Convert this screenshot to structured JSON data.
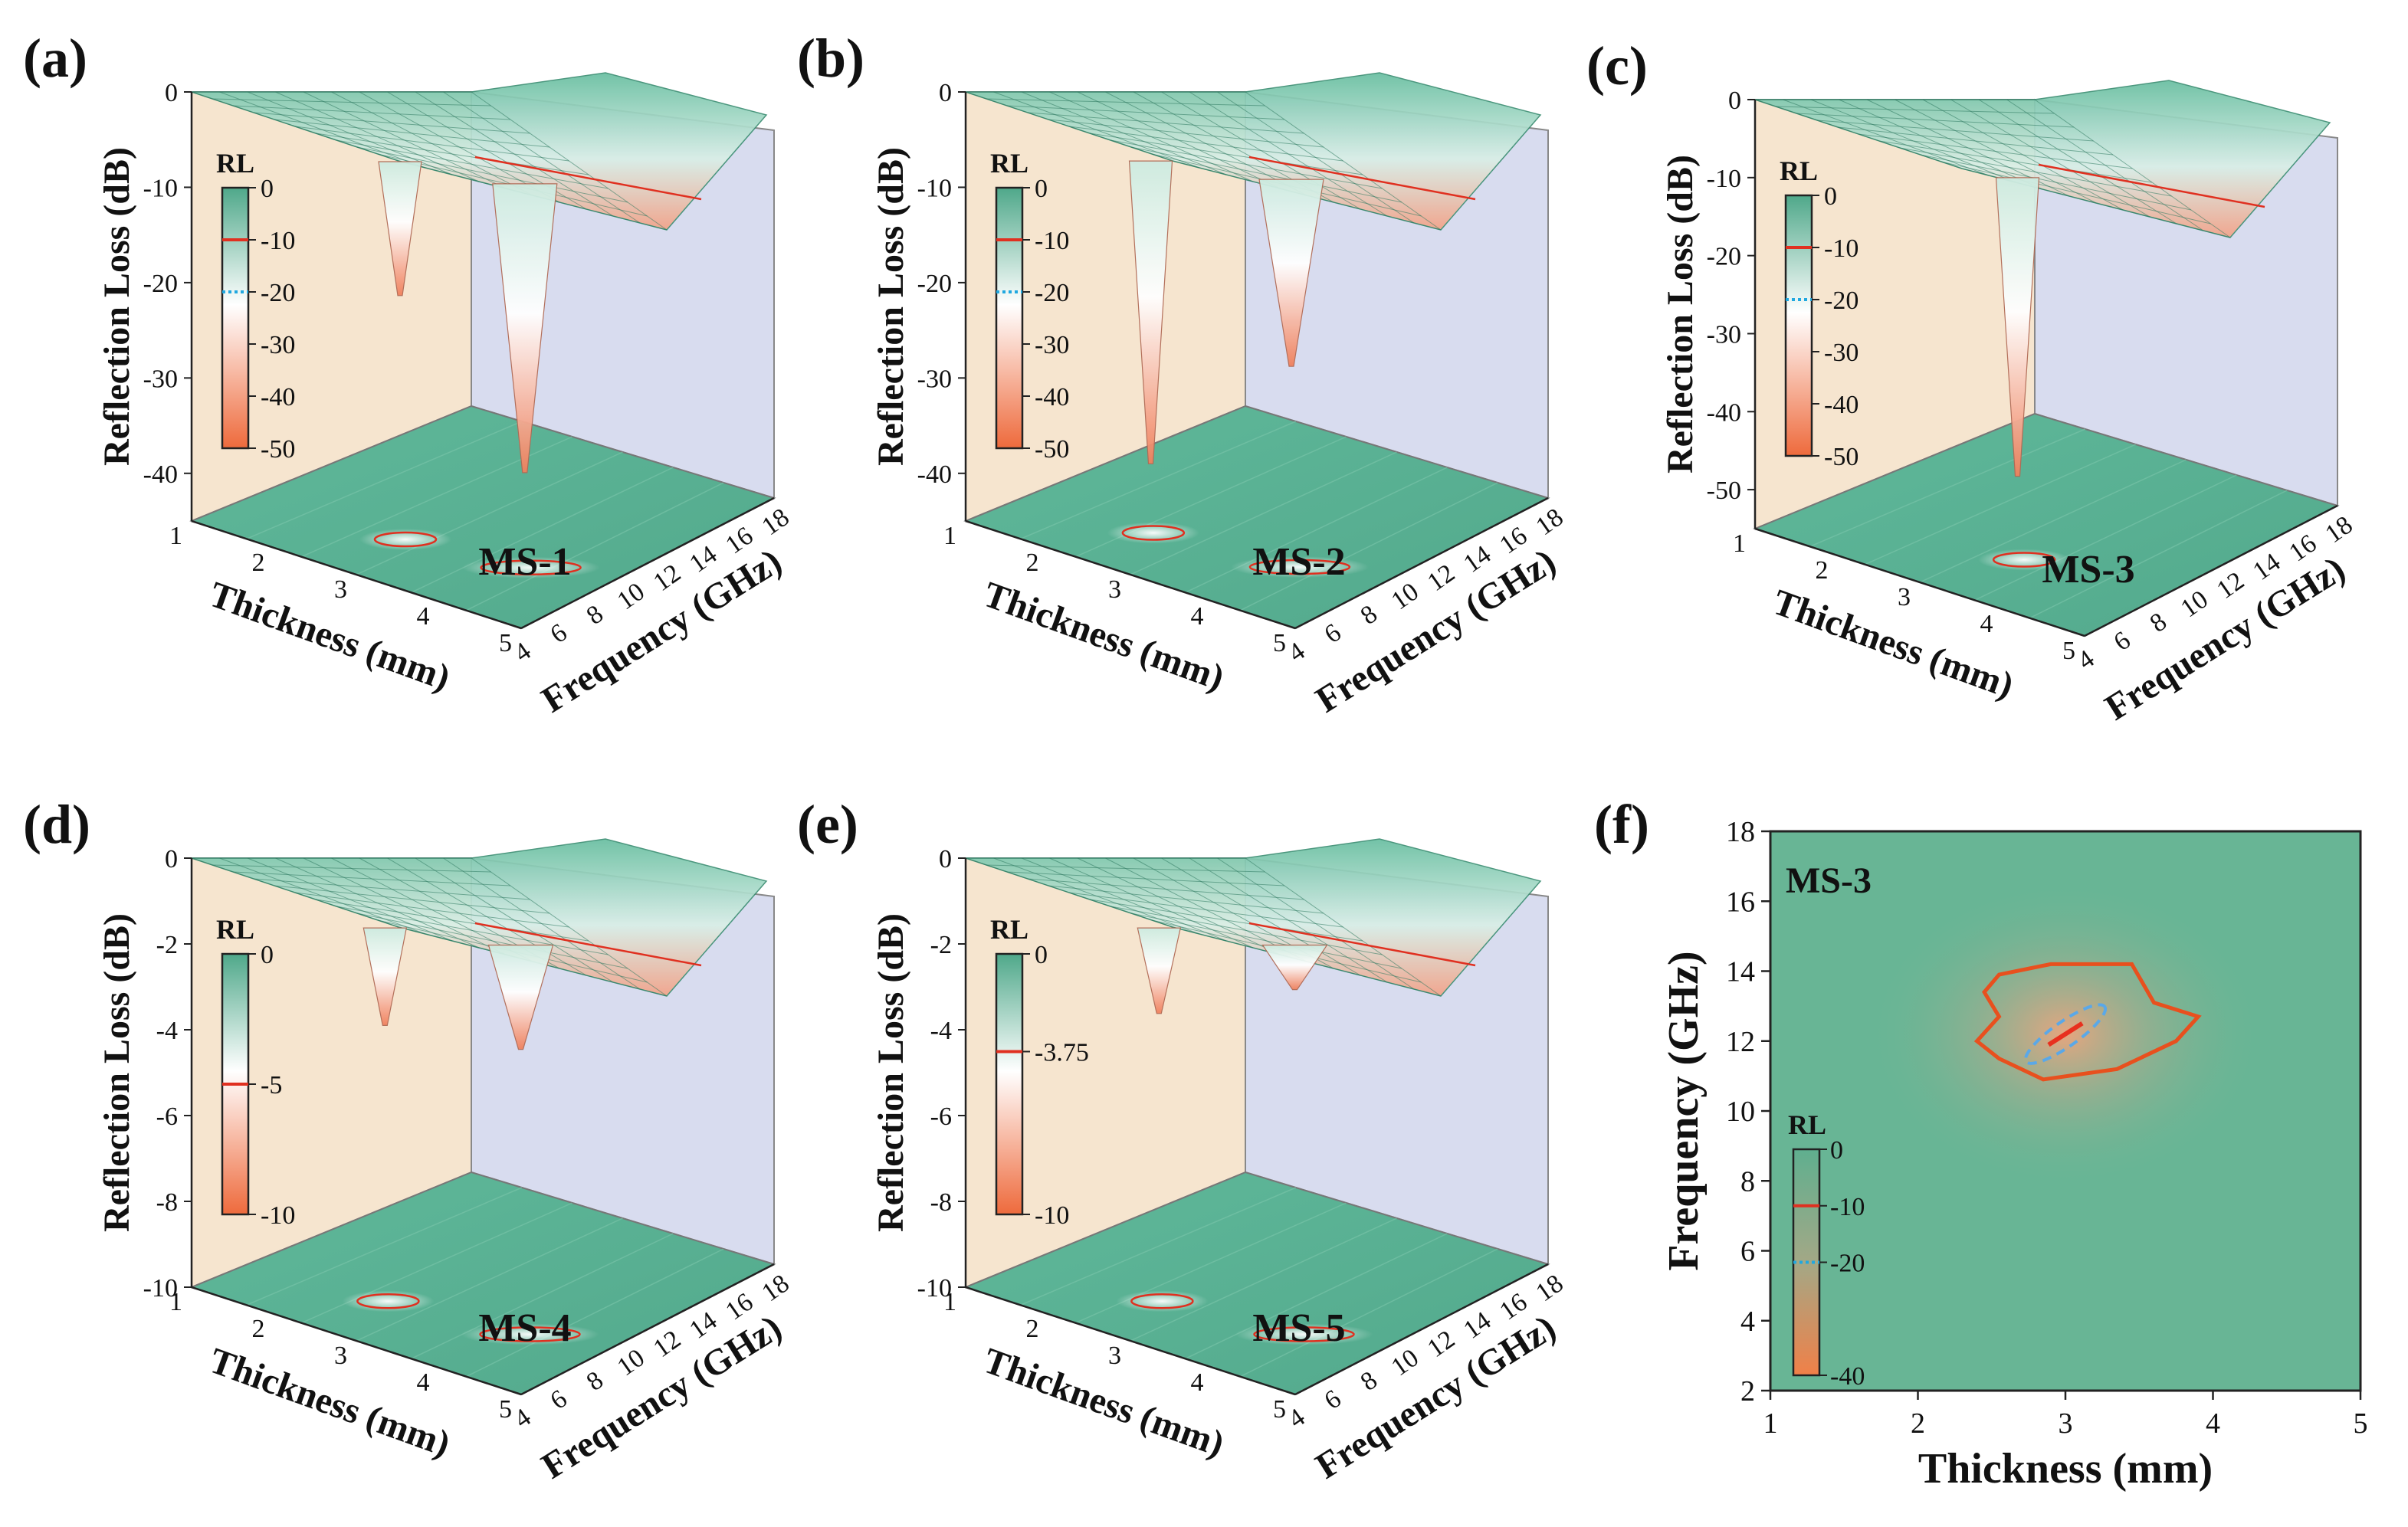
{
  "figure": {
    "panels": [
      {
        "letter": "(a)",
        "sample": "MS-1"
      },
      {
        "letter": "(b)",
        "sample": "MS-2"
      },
      {
        "letter": "(c)",
        "sample": "MS-3"
      },
      {
        "letter": "(d)",
        "sample": "MS-4"
      },
      {
        "letter": "(e)",
        "sample": "MS-5"
      },
      {
        "letter": "(f)",
        "sample": "MS-3"
      }
    ]
  },
  "chart_data": [
    {
      "type": "surface3d",
      "panel": "(a)",
      "sample": "MS-1",
      "xlabel": "Thickness (mm)",
      "ylabel": "Frequency (GHz)",
      "zlabel": "Reflection Loss (dB)",
      "x_ticks": [
        "1",
        "2",
        "3",
        "4",
        "5"
      ],
      "y_ticks": [
        "4",
        "6",
        "8",
        "10",
        "12",
        "14",
        "16",
        "18"
      ],
      "z_ticks": [
        "0",
        "-10",
        "-20",
        "-30",
        "-40"
      ],
      "zlim": [
        -45,
        0
      ],
      "colorbar": {
        "title": "RL",
        "ticks": [
          "0",
          "-10",
          "-20",
          "-30",
          "-40",
          "-50"
        ],
        "range": [
          -50,
          0
        ],
        "contours": [
          {
            "value": -10,
            "color": "#e03020",
            "style": "solid"
          },
          {
            "value": -20,
            "color": "#20a8e0",
            "style": "dotted"
          }
        ]
      },
      "peaks": [
        {
          "thickness": 2.6,
          "frequency": 10.0,
          "rl": -23
        },
        {
          "thickness": 3.3,
          "frequency": 17.0,
          "rl": -43
        }
      ]
    },
    {
      "type": "surface3d",
      "panel": "(b)",
      "sample": "MS-2",
      "xlabel": "Thickness (mm)",
      "ylabel": "Frequency (GHz)",
      "zlabel": "Reflection Loss (dB)",
      "x_ticks": [
        "1",
        "2",
        "3",
        "4",
        "5"
      ],
      "y_ticks": [
        "4",
        "6",
        "8",
        "10",
        "12",
        "14",
        "16",
        "18"
      ],
      "z_ticks": [
        "0",
        "-10",
        "-20",
        "-30",
        "-40"
      ],
      "zlim": [
        -45,
        0
      ],
      "colorbar": {
        "title": "RL",
        "ticks": [
          "0",
          "-10",
          "-20",
          "-30",
          "-40",
          "-50"
        ],
        "range": [
          -50,
          0
        ],
        "contours": [
          {
            "value": -10,
            "color": "#e03020",
            "style": "solid"
          },
          {
            "value": -20,
            "color": "#20a8e0",
            "style": "dotted"
          }
        ]
      },
      "peaks": [
        {
          "thickness": 2.2,
          "frequency": 11.0,
          "rl": -42
        },
        {
          "thickness": 3.5,
          "frequency": 14.5,
          "rl": -31
        }
      ]
    },
    {
      "type": "surface3d",
      "panel": "(c)",
      "sample": "MS-3",
      "xlabel": "Thickness (mm)",
      "ylabel": "Frequency (GHz)",
      "zlabel": "Reflection Loss (dB)",
      "x_ticks": [
        "1",
        "2",
        "3",
        "4",
        "5"
      ],
      "y_ticks": [
        "4",
        "6",
        "8",
        "10",
        "12",
        "14",
        "16",
        "18"
      ],
      "z_ticks": [
        "0",
        "-10",
        "-20",
        "-30",
        "-40",
        "-50"
      ],
      "zlim": [
        -55,
        0
      ],
      "colorbar": {
        "title": "RL",
        "ticks": [
          "0",
          "-10",
          "-20",
          "-30",
          "-40",
          "-50"
        ],
        "range": [
          -50,
          0
        ],
        "contours": [
          {
            "value": -10,
            "color": "#e03020",
            "style": "solid"
          },
          {
            "value": -20,
            "color": "#20a8e0",
            "style": "dotted"
          }
        ]
      },
      "peaks": [
        {
          "thickness": 3.0,
          "frequency": 12.2,
          "rl": -52
        }
      ]
    },
    {
      "type": "surface3d",
      "panel": "(d)",
      "sample": "MS-4",
      "xlabel": "Thickness (mm)",
      "ylabel": "Frequency (GHz)",
      "zlabel": "Reflection Loss (dB)",
      "x_ticks": [
        "1",
        "2",
        "3",
        "4",
        "5"
      ],
      "y_ticks": [
        "4",
        "6",
        "8",
        "10",
        "12",
        "14",
        "16",
        "18"
      ],
      "z_ticks": [
        "0",
        "-2",
        "-4",
        "-6",
        "-8",
        "-10"
      ],
      "zlim": [
        -10,
        0
      ],
      "colorbar": {
        "title": "RL",
        "ticks": [
          "0",
          "-5",
          "-10"
        ],
        "range": [
          -10,
          0
        ],
        "contours": [
          {
            "value": -5,
            "color": "#e03020",
            "style": "solid"
          }
        ]
      },
      "peaks": [
        {
          "thickness": 2.3,
          "frequency": 11.0,
          "rl": -4.2
        },
        {
          "thickness": 3.6,
          "frequency": 14.0,
          "rl": -4.8
        }
      ]
    },
    {
      "type": "surface3d",
      "panel": "(e)",
      "sample": "MS-5",
      "xlabel": "Thickness (mm)",
      "ylabel": "Frequency (GHz)",
      "zlabel": "Reflection Loss (dB)",
      "x_ticks": [
        "1",
        "2",
        "3",
        "4",
        "5"
      ],
      "y_ticks": [
        "4",
        "6",
        "8",
        "10",
        "12",
        "14",
        "16",
        "18"
      ],
      "z_ticks": [
        "0",
        "-2",
        "-4",
        "-6",
        "-8",
        "-10"
      ],
      "zlim": [
        -10,
        0
      ],
      "colorbar": {
        "title": "RL",
        "ticks": [
          "0",
          "-3.75",
          "-10"
        ],
        "range": [
          -10,
          0
        ],
        "contours": [
          {
            "value": -3.75,
            "color": "#e03020",
            "style": "solid"
          }
        ]
      },
      "peaks": [
        {
          "thickness": 2.3,
          "frequency": 11.0,
          "rl": -3.9
        },
        {
          "thickness": 3.6,
          "frequency": 14.0,
          "rl": -3.3
        }
      ]
    },
    {
      "type": "heatmap",
      "panel": "(f)",
      "sample": "MS-3",
      "xlabel": "Thickness (mm)",
      "ylabel": "Frequency (GHz)",
      "x_ticks": [
        "1",
        "2",
        "3",
        "4",
        "5"
      ],
      "xlim": [
        1,
        5
      ],
      "y_ticks": [
        "2",
        "4",
        "6",
        "8",
        "10",
        "12",
        "14",
        "16",
        "18"
      ],
      "ylim": [
        2,
        18
      ],
      "colorbar": {
        "title": "RL",
        "ticks": [
          "0",
          "-10",
          "-20",
          "-40"
        ],
        "range": [
          -40,
          0
        ],
        "contours": [
          {
            "value": -10,
            "color": "#e03020",
            "style": "solid"
          },
          {
            "value": -20,
            "color": "#20a8e0",
            "style": "dashed"
          }
        ]
      },
      "minimum": {
        "thickness": 3.0,
        "frequency": 12.2,
        "rl": -52
      },
      "contour_m10": [
        [
          2.55,
          13.9
        ],
        [
          2.9,
          14.2
        ],
        [
          3.45,
          14.2
        ],
        [
          3.6,
          13.1
        ],
        [
          3.9,
          12.7
        ],
        [
          3.75,
          12.0
        ],
        [
          3.35,
          11.2
        ],
        [
          2.85,
          10.9
        ],
        [
          2.55,
          11.5
        ],
        [
          2.4,
          12.0
        ],
        [
          2.55,
          12.7
        ],
        [
          2.45,
          13.4
        ]
      ],
      "contour_m20": {
        "center": [
          3.0,
          12.2
        ],
        "half_width": [
          0.25,
          0.65
        ],
        "angle_deg": 35
      }
    }
  ]
}
